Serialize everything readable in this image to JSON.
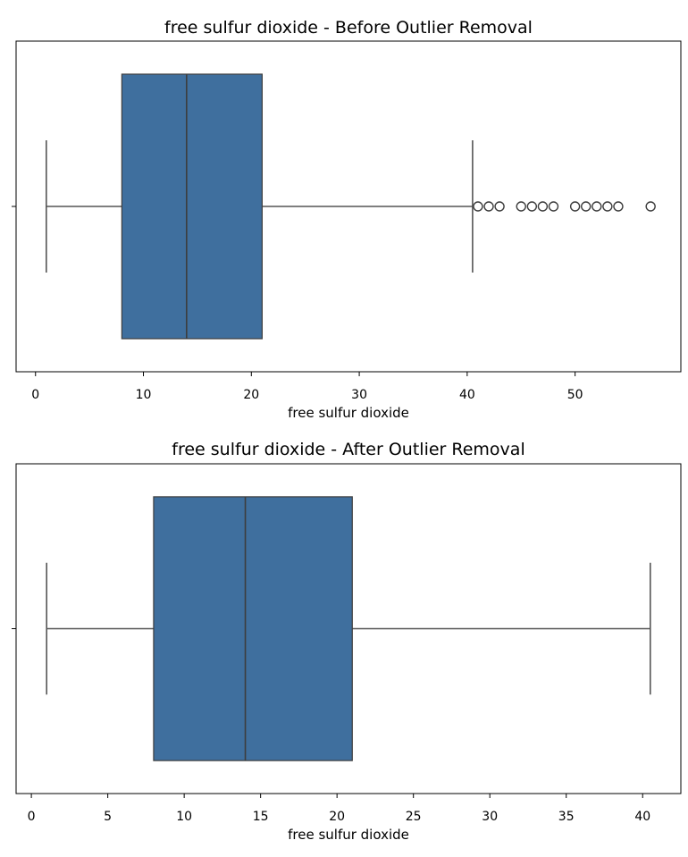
{
  "chart_data": [
    {
      "type": "box",
      "title": "free sulfur dioxide - Before Outlier Removal",
      "xlabel": "free sulfur dioxide",
      "xlim": [
        -1.8,
        59.8
      ],
      "xticks": [
        0,
        10,
        20,
        30,
        40,
        50
      ],
      "whisker_low": 1,
      "q1": 8,
      "median": 14,
      "q3": 21,
      "whisker_high": 40.5,
      "outliers": [
        41,
        42,
        43,
        45,
        46,
        47,
        48,
        50,
        51,
        52,
        53,
        54,
        57
      ]
    },
    {
      "type": "box",
      "title": "free sulfur dioxide - After Outlier Removal",
      "xlabel": "free sulfur dioxide",
      "xlim": [
        -1,
        42.5
      ],
      "xticks": [
        0,
        5,
        10,
        15,
        20,
        25,
        30,
        35,
        40
      ],
      "whisker_low": 1,
      "q1": 8,
      "median": 14,
      "q3": 21,
      "whisker_high": 40.5,
      "outliers": []
    }
  ]
}
